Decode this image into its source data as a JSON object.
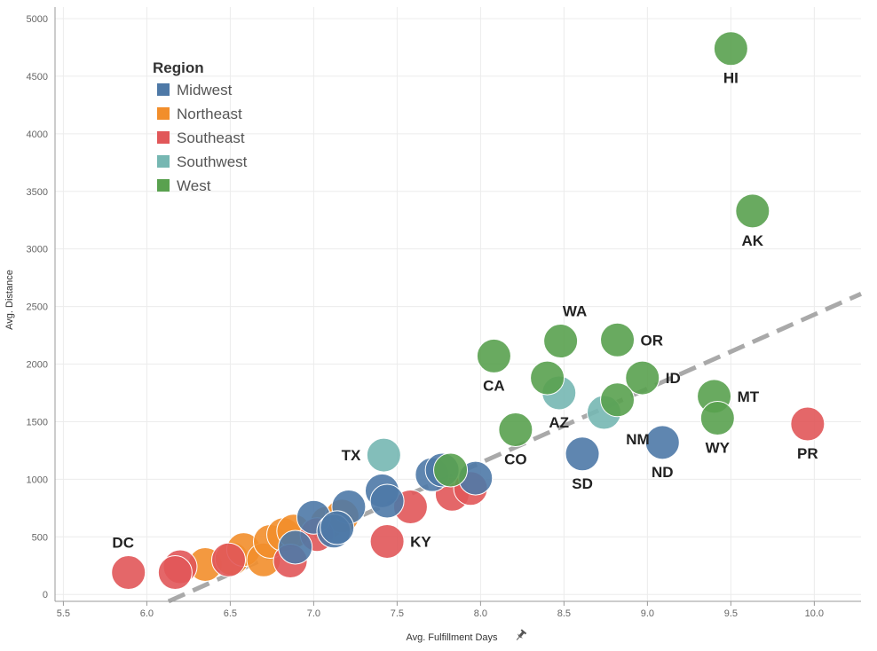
{
  "chart_data": {
    "type": "scatter",
    "xlabel": "Avg. Fulfillment Days",
    "ylabel": "Avg. Distance",
    "xlim": [
      5.45,
      10.28
    ],
    "ylim": [
      -60,
      5100
    ],
    "xticks": [
      5.5,
      6.0,
      6.5,
      7.0,
      7.5,
      8.0,
      8.5,
      9.0,
      9.5,
      10.0
    ],
    "xtick_labels": [
      "5.5",
      "6.0",
      "6.5",
      "7.0",
      "7.5",
      "8.0",
      "8.5",
      "9.0",
      "9.5",
      "10.0"
    ],
    "yticks": [
      0,
      500,
      1000,
      1500,
      2000,
      2500,
      3000,
      3500,
      4000,
      4500,
      5000
    ],
    "ytick_labels": [
      "0",
      "500",
      "1000",
      "1500",
      "2000",
      "2500",
      "3000",
      "3500",
      "4000",
      "4500",
      "5000"
    ],
    "grid": true,
    "legend": {
      "title": "Region",
      "position": "top-left",
      "entries": [
        "Midwest",
        "Northeast",
        "Southeast",
        "Southwest",
        "West"
      ]
    },
    "colors": {
      "Midwest": "#4e79a7",
      "Northeast": "#f28e2b",
      "Southeast": "#e15759",
      "Southwest": "#76b7b2",
      "West": "#59a14f"
    },
    "trend_line": {
      "color": "#a9a9a9",
      "x": [
        6.13,
        10.28
      ],
      "y": [
        -60,
        2610
      ]
    },
    "points": [
      {
        "label": "HI",
        "region": "West",
        "x": 9.5,
        "y": 4740,
        "label_pos": "below"
      },
      {
        "label": "AK",
        "region": "West",
        "x": 9.63,
        "y": 3330,
        "label_pos": "below"
      },
      {
        "label": "WA",
        "region": "West",
        "x": 8.48,
        "y": 2200,
        "label_pos": "above"
      },
      {
        "label": "OR",
        "region": "West",
        "x": 8.82,
        "y": 2210,
        "label_pos": "right"
      },
      {
        "label": "CA",
        "region": "West",
        "x": 8.08,
        "y": 2070,
        "label_pos": "below"
      },
      {
        "label": "ID",
        "region": "West",
        "x": 8.97,
        "y": 1880,
        "label_pos": "right"
      },
      {
        "label": "",
        "region": "West",
        "x": 8.4,
        "y": 1880
      },
      {
        "label": "MT",
        "region": "West",
        "x": 9.4,
        "y": 1720,
        "label_pos": "right"
      },
      {
        "label": "",
        "region": "West",
        "x": 8.82,
        "y": 1690
      },
      {
        "label": "WY",
        "region": "West",
        "x": 9.42,
        "y": 1530,
        "label_pos": "below"
      },
      {
        "label": "CO",
        "region": "West",
        "x": 8.21,
        "y": 1430,
        "label_pos": "below"
      },
      {
        "label": "",
        "region": "West",
        "x": 7.82,
        "y": 1080
      },
      {
        "label": "AZ",
        "region": "Southwest",
        "x": 8.47,
        "y": 1750,
        "label_pos": "below"
      },
      {
        "label": "NM",
        "region": "Southwest",
        "x": 8.74,
        "y": 1580,
        "label_pos": "belowright"
      },
      {
        "label": "TX",
        "region": "Southwest",
        "x": 7.42,
        "y": 1210,
        "label_pos": "left"
      },
      {
        "label": "PR",
        "region": "Southeast",
        "x": 9.96,
        "y": 1480,
        "label_pos": "below"
      },
      {
        "label": "KY",
        "region": "Southeast",
        "x": 7.44,
        "y": 460,
        "label_pos": "right"
      },
      {
        "label": "DC",
        "region": "Southeast",
        "x": 5.89,
        "y": 190,
        "label_pos": "above"
      },
      {
        "label": "",
        "region": "Southeast",
        "x": 7.58,
        "y": 760
      },
      {
        "label": "",
        "region": "Southeast",
        "x": 7.83,
        "y": 870
      },
      {
        "label": "",
        "region": "Southeast",
        "x": 7.94,
        "y": 920
      },
      {
        "label": "",
        "region": "Southeast",
        "x": 7.02,
        "y": 520
      },
      {
        "label": "",
        "region": "Southeast",
        "x": 6.86,
        "y": 290
      },
      {
        "label": "",
        "region": "Southeast",
        "x": 6.49,
        "y": 300
      },
      {
        "label": "",
        "region": "Southeast",
        "x": 6.2,
        "y": 240
      },
      {
        "label": "",
        "region": "Southeast",
        "x": 6.17,
        "y": 190
      },
      {
        "label": "",
        "region": "Northeast",
        "x": 6.35,
        "y": 260
      },
      {
        "label": "",
        "region": "Northeast",
        "x": 6.51,
        "y": 310
      },
      {
        "label": "",
        "region": "Northeast",
        "x": 6.58,
        "y": 390
      },
      {
        "label": "",
        "region": "Northeast",
        "x": 6.7,
        "y": 300
      },
      {
        "label": "",
        "region": "Northeast",
        "x": 6.74,
        "y": 460
      },
      {
        "label": "",
        "region": "Northeast",
        "x": 6.82,
        "y": 520
      },
      {
        "label": "",
        "region": "Northeast",
        "x": 6.88,
        "y": 550
      },
      {
        "label": "",
        "region": "Northeast",
        "x": 7.08,
        "y": 620
      },
      {
        "label": "",
        "region": "Northeast",
        "x": 7.17,
        "y": 680
      },
      {
        "label": "SD",
        "region": "Midwest",
        "x": 8.61,
        "y": 1220,
        "label_pos": "below"
      },
      {
        "label": "ND",
        "region": "Midwest",
        "x": 9.09,
        "y": 1320,
        "label_pos": "below"
      },
      {
        "label": "",
        "region": "Midwest",
        "x": 7.97,
        "y": 1010
      },
      {
        "label": "",
        "region": "Midwest",
        "x": 7.71,
        "y": 1040
      },
      {
        "label": "",
        "region": "Midwest",
        "x": 7.77,
        "y": 1080
      },
      {
        "label": "",
        "region": "Midwest",
        "x": 7.41,
        "y": 900
      },
      {
        "label": "",
        "region": "Midwest",
        "x": 7.44,
        "y": 810
      },
      {
        "label": "",
        "region": "Midwest",
        "x": 7.21,
        "y": 760
      },
      {
        "label": "",
        "region": "Midwest",
        "x": 7.0,
        "y": 670
      },
      {
        "label": "",
        "region": "Midwest",
        "x": 7.12,
        "y": 550
      },
      {
        "label": "",
        "region": "Midwest",
        "x": 7.14,
        "y": 580
      },
      {
        "label": "",
        "region": "Midwest",
        "x": 6.89,
        "y": 410
      }
    ]
  }
}
